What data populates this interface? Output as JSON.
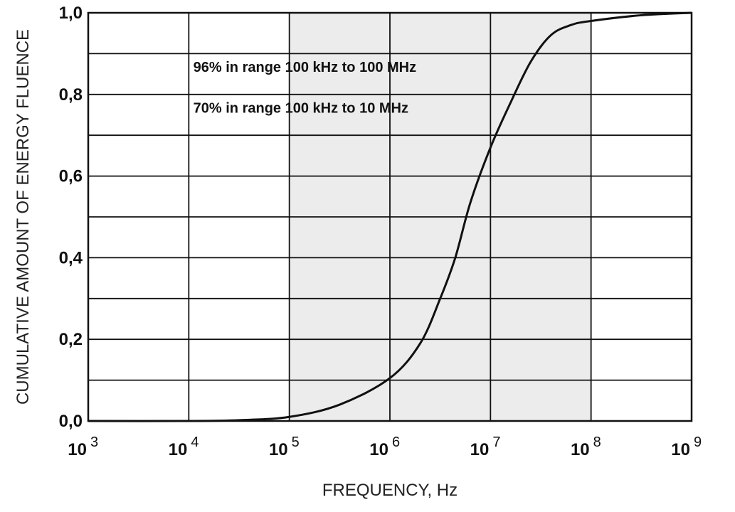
{
  "chart_data": {
    "type": "line",
    "title": "",
    "xlabel": "FREQUENCY, Hz",
    "ylabel": "CUMULATIVE AMOUNT OF ENERGY FLUENCE",
    "xscale": "log",
    "xlim": [
      1000,
      1000000000
    ],
    "ylim": [
      0.0,
      1.0
    ],
    "grid": true,
    "x_ticks": [
      {
        "base": "10",
        "exp": "3",
        "value": 1000
      },
      {
        "base": "10",
        "exp": "4",
        "value": 10000
      },
      {
        "base": "10",
        "exp": "5",
        "value": 100000
      },
      {
        "base": "10",
        "exp": "6",
        "value": 1000000
      },
      {
        "base": "10",
        "exp": "7",
        "value": 10000000
      },
      {
        "base": "10",
        "exp": "8",
        "value": 100000000
      },
      {
        "base": "10",
        "exp": "9",
        "value": 1000000000
      }
    ],
    "y_ticks": [
      {
        "label": "0,0",
        "value": 0.0
      },
      {
        "label": "0,2",
        "value": 0.2
      },
      {
        "label": "0,4",
        "value": 0.4
      },
      {
        "label": "0,6",
        "value": 0.6
      },
      {
        "label": "0,8",
        "value": 0.8
      },
      {
        "label": "1,0",
        "value": 1.0
      }
    ],
    "shaded_range": {
      "x_from": 100000,
      "x_to": 100000000,
      "color": "#ececec"
    },
    "annotations": [
      {
        "text": "96%  in range 100 kHz to 100 MHz",
        "x": 100000,
        "y": 0.855
      },
      {
        "text": "70% in range 100 kHz to 10 MHz",
        "x": 100000,
        "y": 0.755
      }
    ],
    "series": [
      {
        "color": "#111111",
        "points": [
          [
            1000,
            0.0
          ],
          [
            10000,
            0.0
          ],
          [
            31623,
            0.002
          ],
          [
            100000,
            0.01
          ],
          [
            316228,
            0.04
          ],
          [
            1000000,
            0.105
          ],
          [
            2000000,
            0.19
          ],
          [
            3162278,
            0.3
          ],
          [
            4466836,
            0.4
          ],
          [
            6309573,
            0.535
          ],
          [
            10000000,
            0.67
          ],
          [
            15848932,
            0.78
          ],
          [
            25118864,
            0.88
          ],
          [
            39810717,
            0.945
          ],
          [
            63095734,
            0.97
          ],
          [
            100000000,
            0.98
          ],
          [
            316227766,
            0.994
          ],
          [
            1000000000,
            1.0
          ]
        ]
      }
    ]
  }
}
